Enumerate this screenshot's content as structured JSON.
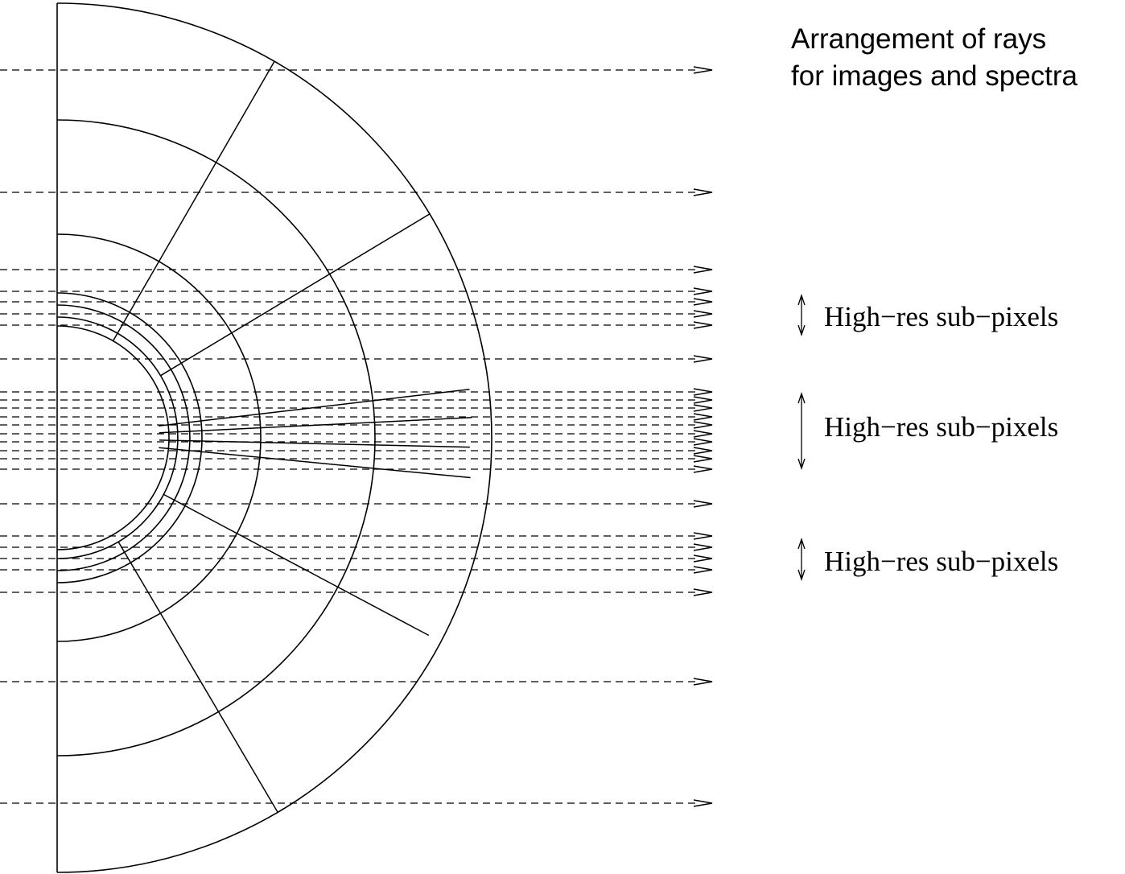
{
  "title": {
    "line1": "Arrangement of rays",
    "line2": "for images and spectra"
  },
  "annotations": [
    {
      "label": "High−res sub−pixels"
    },
    {
      "label": "High−res sub−pixels"
    },
    {
      "label": "High−res sub−pixels"
    }
  ]
}
